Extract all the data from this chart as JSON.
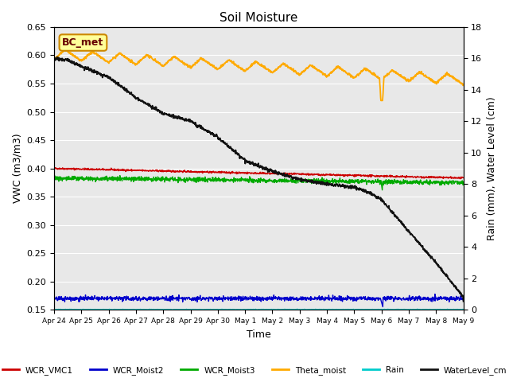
{
  "title": "Soil Moisture",
  "ylabel_left": "VWC (m3/m3)",
  "ylabel_right": "Rain (mm), Water Level (cm)",
  "xlabel": "Time",
  "annotation": "BC_met",
  "ylim_left": [
    0.15,
    0.65
  ],
  "ylim_right": [
    0,
    18
  ],
  "yticks_left": [
    0.15,
    0.2,
    0.25,
    0.3,
    0.35,
    0.4,
    0.45,
    0.5,
    0.55,
    0.6,
    0.65
  ],
  "yticks_right": [
    0,
    2,
    4,
    6,
    8,
    10,
    12,
    14,
    16,
    18
  ],
  "background_color": "#e8e8e8",
  "colors": {
    "WCR_VMC1": "#cc0000",
    "WCR_Moist2": "#0000cc",
    "WCR_Moist3": "#00aa00",
    "Theta_moist": "#ffaa00",
    "Rain": "#00cccc",
    "WaterLevel_cm": "#111111"
  },
  "tick_labels": [
    "Apr 24",
    "Apr 25",
    "Apr 26",
    "Apr 27",
    "Apr 28",
    "Apr 29",
    "Apr 30",
    "May 1",
    "May 2",
    "May 3",
    "May 4",
    "May 5",
    "May 6",
    "May 7",
    "May 8",
    "May 9"
  ]
}
